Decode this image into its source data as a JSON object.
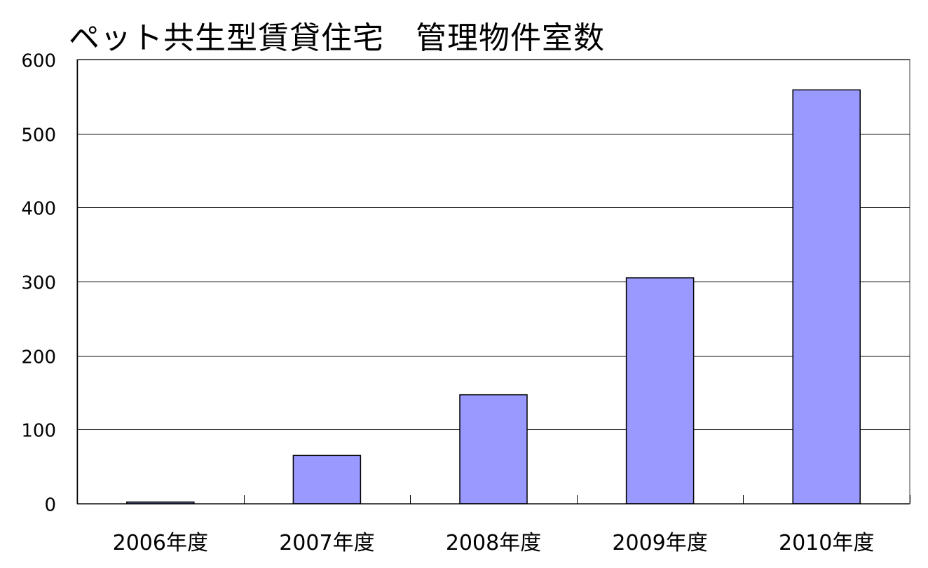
{
  "chart_data": {
    "type": "bar",
    "title": "ペット共生型賃貸住宅　管理物件室数",
    "categories": [
      "2006年度",
      "2007年度",
      "2008年度",
      "2009年度",
      "2010年度"
    ],
    "values": [
      2,
      65,
      147,
      305,
      559
    ],
    "ylim": [
      0,
      600
    ],
    "yticks": [
      0,
      100,
      200,
      300,
      400,
      500,
      600
    ],
    "xlabel": "",
    "ylabel": "",
    "grid": true,
    "legend": "none",
    "bar_color": "#9999ff",
    "bar_stroke": "#000000"
  }
}
